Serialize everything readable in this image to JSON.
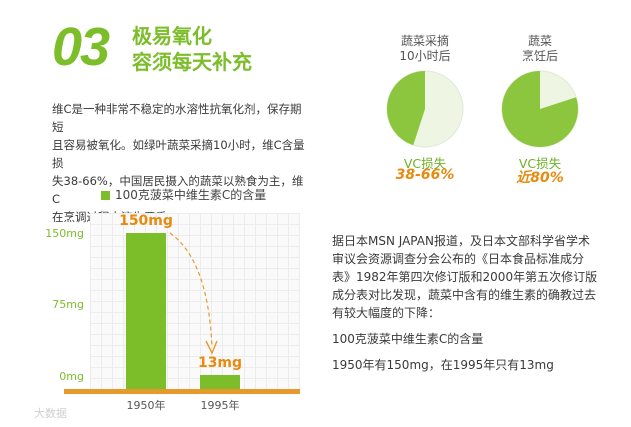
{
  "header": {
    "number": "03",
    "title_line1": "极易氧化",
    "title_line2": "容须每天补充"
  },
  "intro_lines": [
    "维C是一种非常不稳定的水溶性抗氧化剂，保存期短",
    "且容易被氧化。如绿叶蔬菜采摘10小时，维C含量损",
    "失38-66%，中国居民摄入的蔬菜以熟食为主，维C",
    "在烹调过程中流失严重。"
  ],
  "pies": [
    {
      "label_line1": "蔬菜采摘",
      "label_line2": "10小时后",
      "vc_label": "VC损失",
      "value_text": "38-66%",
      "loss_fraction": 0.45
    },
    {
      "label_line1": "蔬菜",
      "label_line2": "烹饪后",
      "vc_label": "VC损失",
      "value_text": "近80%",
      "loss_fraction": 0.8
    }
  ],
  "chart_data": {
    "type": "bar",
    "legend": "100克菠菜中维生素C的含量",
    "categories": [
      "1950年",
      "1995年"
    ],
    "values": [
      150,
      13
    ],
    "value_labels": [
      "150mg",
      "13mg"
    ],
    "y_ticks": [
      "150mg",
      "75mg",
      "0mg"
    ],
    "y_tick_values": [
      150,
      75,
      0
    ],
    "ylim": [
      0,
      150
    ],
    "grid": true,
    "colors": {
      "bar": "#7cbd2a",
      "axis": "#e59a2b",
      "label": "#e88a0f"
    }
  },
  "right_text": {
    "para_lines": [
      "据日本MSN JAPAN报道，及日本文部科学省学术",
      "审议会资源调查分会公布的《日本食品标准成分",
      "表》1982年第四次修订版和2000年第五次修订版",
      "成分表对比发现，蔬菜中含有的维生素的确教过去",
      "有较大幅度的下降："
    ],
    "line2": "100克菠菜中维生素C的含量",
    "line3": "1950年有150mg，在1995年只有13mg"
  },
  "watermark": "大数据"
}
